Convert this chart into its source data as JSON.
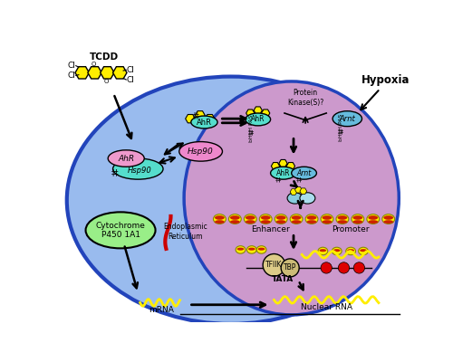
{
  "bg_color": "#ffffff",
  "outer_cell_color": "#99bbee",
  "outer_cell_edge": "#2244bb",
  "nucleus_color": "#cc99cc",
  "nucleus_edge": "#2244bb",
  "tcdd_color": "#ffee00",
  "tcdd_label": "TCDD",
  "ahr_label": "AhR",
  "hsp90_label": "Hsp90",
  "hypoxia_label": "Hypoxia",
  "cyp_label": "Cytochrome\nP450 1A1",
  "er_label": "Endoplasmic\nReticulum",
  "mrna_label": "mRNA",
  "nuclear_rna_label": "Nuclear RNA",
  "enhancer_label": "Enhancer",
  "promoter_label": "Promoter",
  "tata_label": "TATA",
  "tfiik_label": "TFIIK",
  "tbp_label": "TBP",
  "arnt_label": "Arnt",
  "bhlh_pas_label": "bHLH PAS",
  "protein_kinase_label": "Protein\nKinase(S)?",
  "colors": {
    "yellow": "#ffee00",
    "cyan": "#55ddcc",
    "cyan2": "#66bbdd",
    "pink": "#ff9999",
    "red": "#cc0000",
    "green": "#99ee88",
    "magenta_pink": "#ee88aa"
  }
}
